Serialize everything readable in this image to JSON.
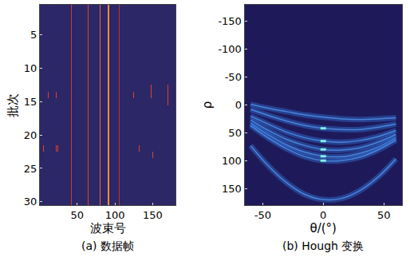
{
  "chart_data": [
    {
      "type": "heatmap",
      "title": "(a) 数据帧",
      "x_label": "波束号",
      "y_label": "批次",
      "xlim": [
        0.5,
        180.5
      ],
      "xticks": [
        50,
        100,
        150
      ],
      "ylim": [
        30.5,
        0.5
      ],
      "yticks": [
        5,
        10,
        15,
        20,
        25,
        30
      ],
      "zlim": [
        0,
        1
      ],
      "cells": [
        {
          "beam": 42,
          "batches": [
            1,
            30
          ],
          "value": 0.7
        },
        {
          "beam": 65,
          "batches": [
            1,
            30
          ],
          "value": 0.8
        },
        {
          "beam": 80,
          "batches": [
            1,
            30
          ],
          "value": 0.9
        },
        {
          "beam": 91,
          "batches": [
            1,
            30
          ],
          "value": 1
        },
        {
          "beam": 92,
          "batches": [
            1,
            30
          ],
          "value": 1
        },
        {
          "beam": 100,
          "batches": [
            1,
            26
          ],
          "value": 0.75
        },
        {
          "beam": 106,
          "batches": [
            1,
            30
          ],
          "value": 0.6
        },
        {
          "beam": 12,
          "batches": [
            14,
            14
          ],
          "value": 0.8
        },
        {
          "beam": 22,
          "batches": [
            14,
            14
          ],
          "value": 0.8
        },
        {
          "beam": 5,
          "batches": [
            22,
            22
          ],
          "value": 0.8
        },
        {
          "beam": 10,
          "batches": [
            22,
            22
          ],
          "value": 0.8
        },
        {
          "beam": 22,
          "batches": [
            22,
            22
          ],
          "value": 0.8
        },
        {
          "beam": 24,
          "batches": [
            22,
            22
          ],
          "value": 0.8
        },
        {
          "beam": 125,
          "batches": [
            14,
            14
          ],
          "value": 0.8
        },
        {
          "beam": 132,
          "batches": [
            22,
            22
          ],
          "value": 0.8
        },
        {
          "beam": 148,
          "batches": [
            13,
            14
          ],
          "value": 0.8
        },
        {
          "beam": 150,
          "batches": [
            23,
            23
          ],
          "value": 0.8
        },
        {
          "beam": 170,
          "batches": [
            13,
            15
          ],
          "value": 0.8
        },
        {
          "beam": 172,
          "batches": [
            22,
            23
          ],
          "value": 0.8
        }
      ]
    },
    {
      "type": "line",
      "title": "(b) Hough 变换",
      "x_label": "θ/(°)",
      "y_label": "ρ",
      "xlim": [
        -65,
        65
      ],
      "xticks": [
        -50,
        0,
        50
      ],
      "ylim": [
        180,
        -180
      ],
      "yticks": [
        -150,
        -100,
        -50,
        0,
        50,
        100,
        150
      ],
      "x": [
        -60,
        -45,
        -30,
        -15,
        0,
        15,
        30,
        45,
        60
      ],
      "series": [
        {
          "values": [
            -1,
            6,
            12,
            18,
            22,
            25,
            26,
            25,
            23
          ]
        },
        {
          "values": [
            8,
            19,
            29,
            37,
            42,
            44,
            44,
            40,
            34
          ]
        },
        {
          "values": [
            20,
            35,
            49,
            59,
            65,
            67,
            64,
            57,
            46
          ]
        },
        {
          "values": [
            27,
            46,
            62,
            73,
            80,
            81,
            77,
            67,
            53
          ]
        },
        {
          "values": [
            33,
            54,
            72,
            85,
            92,
            93,
            87,
            76,
            59
          ]
        },
        {
          "values": [
            37,
            60,
            79,
            93,
            100,
            100,
            94,
            81,
            63
          ]
        },
        {
          "values": [
            73,
            110,
            140,
            161,
            170,
            168,
            154,
            130,
            97
          ]
        }
      ],
      "peaks": {
        "x": [
          0,
          0,
          0,
          0,
          0
        ],
        "y": [
          42,
          65,
          80,
          92,
          100
        ]
      }
    }
  ]
}
